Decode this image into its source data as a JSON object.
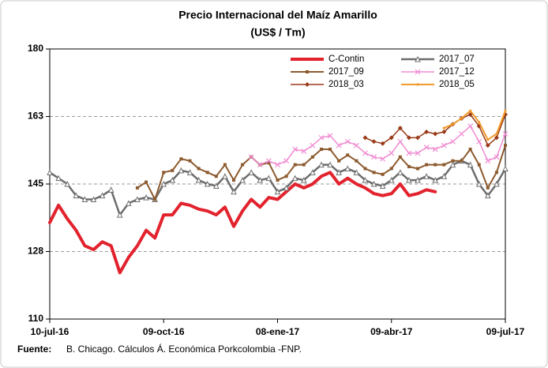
{
  "chart_data": {
    "type": "line",
    "title": "Precio Internacional del Maíz Amarillo",
    "subtitle": "(US$ / Tm)",
    "footnote_label": "Fuente:",
    "footnote": "B. Chicago. Cálculos Á. Económica Porkcolombia -FNP.",
    "categories": [
      "10-jul-16",
      null,
      null,
      null,
      null,
      null,
      null,
      null,
      null,
      null,
      null,
      null,
      null,
      "09-oct-16",
      null,
      null,
      null,
      null,
      null,
      null,
      null,
      null,
      null,
      null,
      null,
      null,
      "08-ene-17",
      null,
      null,
      null,
      null,
      null,
      null,
      null,
      null,
      null,
      null,
      null,
      null,
      "09-abr-17",
      null,
      null,
      null,
      null,
      null,
      null,
      null,
      null,
      null,
      null,
      null,
      null,
      "09-jul-17"
    ],
    "ylim": [
      110,
      180
    ],
    "yticks": [
      110,
      {
        "value": 127.5,
        "label": "128"
      },
      145,
      {
        "value": 162.5,
        "label": "163"
      },
      180
    ],
    "grid": true,
    "series": [
      {
        "name": "C-Contin",
        "color": "#e2222d",
        "width": 4,
        "marker": "none",
        "values": [
          135,
          139.5,
          136,
          133,
          129,
          128,
          130,
          129,
          122,
          126,
          129,
          133,
          131,
          137,
          137,
          140,
          139.5,
          138.5,
          138,
          137,
          139,
          134,
          138,
          141,
          139,
          141.5,
          141,
          143,
          145,
          144,
          145,
          147,
          148,
          145,
          146.5,
          145,
          144,
          142.5,
          142,
          142.5,
          145,
          142,
          142.5,
          143.5,
          143,
          null,
          null,
          null,
          null,
          null,
          null,
          null,
          null
        ]
      },
      {
        "name": "2017_07",
        "color": "#6d6d6d",
        "width": 2.5,
        "marker": "triangle",
        "values": [
          148,
          146.5,
          145,
          142,
          141,
          141,
          142,
          143.5,
          137,
          140,
          141,
          141.5,
          141,
          145,
          146,
          148.5,
          148,
          146,
          145,
          144.5,
          147,
          143,
          146,
          148,
          146,
          146.5,
          143,
          144,
          146.5,
          146,
          148,
          150,
          150,
          148,
          149,
          148,
          146,
          145,
          144.5,
          146,
          148,
          146,
          146,
          147,
          146,
          147,
          150,
          151,
          150,
          145,
          142,
          145,
          149
        ]
      },
      {
        "name": "2017_09",
        "color": "#8c5a2e",
        "width": 2,
        "marker": "square",
        "values": [
          null,
          null,
          null,
          null,
          null,
          null,
          null,
          null,
          null,
          null,
          144,
          145.5,
          141,
          148,
          148.5,
          151.5,
          151,
          149,
          148,
          147,
          150,
          146,
          150,
          152,
          150,
          150.5,
          146,
          147,
          150,
          150,
          152,
          154,
          154,
          151,
          152.5,
          151,
          149,
          148,
          147.5,
          149,
          152,
          149.5,
          149,
          150,
          150,
          150,
          151,
          151,
          154,
          150,
          144,
          148,
          155
        ]
      },
      {
        "name": "2017_12",
        "color": "#f08cd2",
        "width": 1.5,
        "marker": "cross",
        "values": [
          null,
          null,
          null,
          null,
          null,
          null,
          null,
          null,
          null,
          null,
          null,
          null,
          null,
          null,
          null,
          null,
          null,
          null,
          null,
          null,
          null,
          null,
          null,
          152,
          150,
          151,
          150,
          151,
          154,
          153.5,
          155,
          157,
          157.5,
          155,
          156,
          155,
          153,
          152,
          151.5,
          153,
          156,
          153,
          153,
          154.5,
          154,
          155,
          156,
          158,
          160,
          156,
          151,
          152,
          158
        ]
      },
      {
        "name": "2018_03",
        "color": "#9a3a18",
        "width": 1.5,
        "marker": "diamond",
        "values": [
          null,
          null,
          null,
          null,
          null,
          null,
          null,
          null,
          null,
          null,
          null,
          null,
          null,
          null,
          null,
          null,
          null,
          null,
          null,
          null,
          null,
          null,
          null,
          null,
          null,
          null,
          null,
          null,
          null,
          null,
          null,
          null,
          null,
          null,
          null,
          null,
          157,
          156,
          155.5,
          157,
          159.5,
          157,
          157,
          158.5,
          158,
          158.5,
          160.5,
          162,
          163,
          160,
          155,
          157,
          163
        ]
      },
      {
        "name": "2018_05",
        "color": "#f39a2a",
        "width": 2,
        "marker": "dot",
        "values": [
          null,
          null,
          null,
          null,
          null,
          null,
          null,
          null,
          null,
          null,
          null,
          null,
          null,
          null,
          null,
          null,
          null,
          null,
          null,
          null,
          null,
          null,
          null,
          null,
          null,
          null,
          null,
          null,
          null,
          null,
          null,
          null,
          null,
          null,
          null,
          null,
          null,
          null,
          null,
          null,
          null,
          null,
          null,
          null,
          null,
          159.5,
          160.5,
          162,
          164,
          161,
          156.5,
          158,
          164
        ]
      }
    ]
  }
}
